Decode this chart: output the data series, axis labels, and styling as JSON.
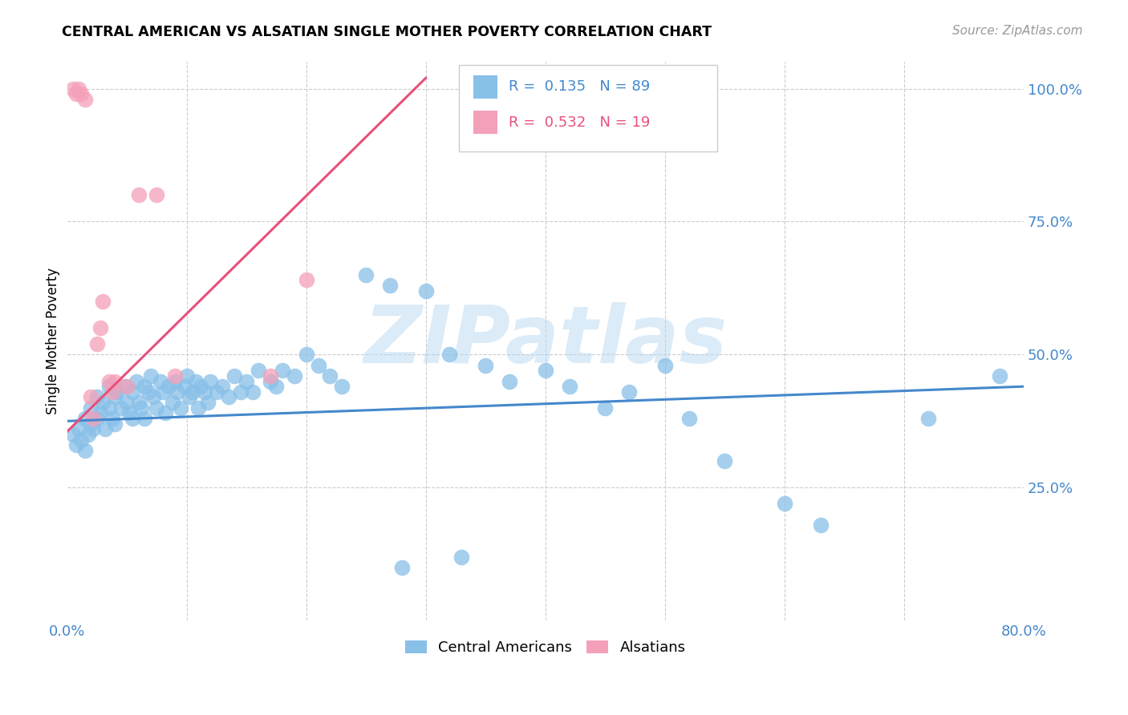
{
  "title": "CENTRAL AMERICAN VS ALSATIAN SINGLE MOTHER POVERTY CORRELATION CHART",
  "source": "Source: ZipAtlas.com",
  "ylabel": "Single Mother Poverty",
  "watermark": "ZIPatlas",
  "xlim": [
    0.0,
    0.8
  ],
  "ylim": [
    0.0,
    1.05
  ],
  "xtick_positions": [
    0.0,
    0.2,
    0.4,
    0.6,
    0.8
  ],
  "xticklabels": [
    "0.0%",
    "",
    "",
    "",
    "80.0%"
  ],
  "ytick_positions": [
    0.25,
    0.5,
    0.75,
    1.0
  ],
  "yticklabels": [
    "25.0%",
    "50.0%",
    "75.0%",
    "100.0%"
  ],
  "blue_color": "#88C0E8",
  "pink_color": "#F4A0B8",
  "blue_line_color": "#4488CC",
  "pink_line_color": "#E8507A",
  "tick_color": "#4488CC",
  "legend_blue_label": "Central Americans",
  "legend_pink_label": "Alsatians",
  "R_blue": 0.135,
  "N_blue": 89,
  "R_pink": 0.532,
  "N_pink": 19,
  "blue_scatter_x": [
    0.005,
    0.008,
    0.01,
    0.012,
    0.015,
    0.015,
    0.018,
    0.02,
    0.02,
    0.022,
    0.025,
    0.025,
    0.028,
    0.03,
    0.032,
    0.035,
    0.035,
    0.038,
    0.04,
    0.04,
    0.042,
    0.045,
    0.048,
    0.05,
    0.052,
    0.055,
    0.055,
    0.058,
    0.06,
    0.062,
    0.065,
    0.065,
    0.068,
    0.07,
    0.072,
    0.075,
    0.078,
    0.08,
    0.082,
    0.085,
    0.088,
    0.09,
    0.092,
    0.095,
    0.098,
    0.1,
    0.102,
    0.105,
    0.108,
    0.11,
    0.112,
    0.115,
    0.118,
    0.12,
    0.125,
    0.13,
    0.135,
    0.14,
    0.145,
    0.15,
    0.155,
    0.16,
    0.17,
    0.175,
    0.18,
    0.19,
    0.2,
    0.21,
    0.22,
    0.23,
    0.25,
    0.27,
    0.3,
    0.32,
    0.35,
    0.37,
    0.4,
    0.42,
    0.45,
    0.47,
    0.5,
    0.52,
    0.55,
    0.6,
    0.63,
    0.72,
    0.78,
    0.28,
    0.33
  ],
  "blue_scatter_y": [
    0.35,
    0.33,
    0.36,
    0.34,
    0.32,
    0.38,
    0.35,
    0.4,
    0.37,
    0.36,
    0.38,
    0.42,
    0.39,
    0.41,
    0.36,
    0.4,
    0.44,
    0.38,
    0.42,
    0.37,
    0.43,
    0.4,
    0.44,
    0.41,
    0.39,
    0.43,
    0.38,
    0.45,
    0.41,
    0.4,
    0.44,
    0.38,
    0.43,
    0.46,
    0.42,
    0.4,
    0.45,
    0.43,
    0.39,
    0.44,
    0.41,
    0.45,
    0.43,
    0.4,
    0.44,
    0.46,
    0.42,
    0.43,
    0.45,
    0.4,
    0.44,
    0.43,
    0.41,
    0.45,
    0.43,
    0.44,
    0.42,
    0.46,
    0.43,
    0.45,
    0.43,
    0.47,
    0.45,
    0.44,
    0.47,
    0.46,
    0.5,
    0.48,
    0.46,
    0.44,
    0.65,
    0.63,
    0.62,
    0.5,
    0.48,
    0.45,
    0.47,
    0.44,
    0.4,
    0.43,
    0.48,
    0.38,
    0.3,
    0.22,
    0.18,
    0.38,
    0.46,
    0.1,
    0.12
  ],
  "pink_scatter_x": [
    0.005,
    0.008,
    0.01,
    0.012,
    0.015,
    0.02,
    0.022,
    0.025,
    0.028,
    0.03,
    0.035,
    0.038,
    0.04,
    0.05,
    0.06,
    0.075,
    0.09,
    0.17,
    0.2
  ],
  "pink_scatter_y": [
    1.0,
    0.99,
    1.0,
    0.99,
    0.98,
    0.42,
    0.38,
    0.52,
    0.55,
    0.6,
    0.45,
    0.43,
    0.45,
    0.44,
    0.8,
    0.8,
    0.46,
    0.46,
    0.64
  ],
  "blue_trend_x": [
    0.0,
    0.8
  ],
  "blue_trend_y": [
    0.375,
    0.44
  ],
  "pink_trend_x": [
    0.0,
    0.3
  ],
  "pink_trend_y": [
    0.355,
    1.02
  ],
  "background_color": "#FFFFFF",
  "grid_color": "#CCCCCC",
  "grid_vlines": [
    0.1,
    0.2,
    0.3,
    0.4,
    0.5,
    0.6,
    0.7
  ]
}
